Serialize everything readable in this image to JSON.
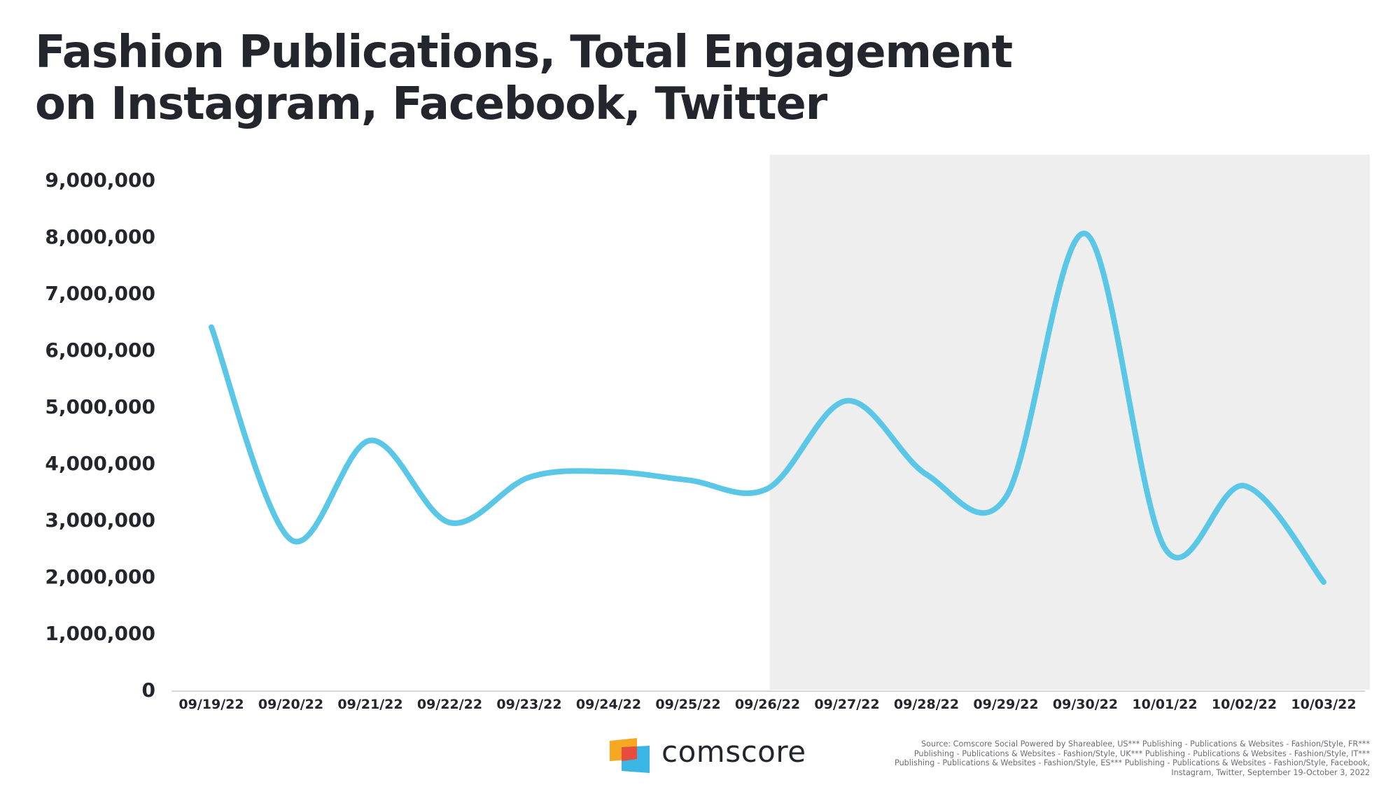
{
  "title": {
    "line1": "Fashion Publications, Total Engagement",
    "line2": "on Instagram, Facebook, Twitter"
  },
  "chart_data": {
    "type": "line",
    "title": "Fashion Publications, Total Engagement on Instagram, Facebook, Twitter",
    "xlabel": "",
    "ylabel": "",
    "categories": [
      "09/19/22",
      "09/20/22",
      "09/21/22",
      "09/22/22",
      "09/23/22",
      "09/24/22",
      "09/25/22",
      "09/26/22",
      "09/27/22",
      "09/28/22",
      "09/29/22",
      "09/30/22",
      "10/01/22",
      "10/02/22",
      "10/03/22"
    ],
    "series": [
      {
        "values": [
          6400000,
          2650000,
          4400000,
          2950000,
          3750000,
          3850000,
          3700000,
          3550000,
          5100000,
          3800000,
          3400000,
          8050000,
          2500000,
          3600000,
          1900000
        ],
        "color": "#5bc7e6"
      }
    ],
    "ylim": [
      0,
      9000000
    ],
    "yticks": [
      0,
      1000000,
      2000000,
      3000000,
      4000000,
      5000000,
      6000000,
      7000000,
      8000000,
      9000000
    ],
    "ytick_labels": [
      "0",
      "1,000,000",
      "2,000,000",
      "3,000,000",
      "4,000,000",
      "5,000,000",
      "6,000,000",
      "7,000,000",
      "8,000,000",
      "9,000,000"
    ],
    "highlight_range": [
      "09/26/22",
      "10/03/22"
    ],
    "highlight_color": "#eeeeee",
    "grid": false,
    "legend": "none"
  },
  "footer": {
    "logo_text": "comscore",
    "logo_colors": [
      "#f7a823",
      "#e84c3d",
      "#39b6e3"
    ],
    "source_lines": [
      "Source: Comscore Social Powered by Shareablee, US*** Publishing - Publications & Websites - Fashion/Style, FR***",
      "Publishing - Publications & Websites - Fashion/Style, UK*** Publishing - Publications & Websites - Fashion/Style, IT***",
      "Publishing - Publications & Websites - Fashion/Style, ES*** Publishing - Publications & Websites - Fashion/Style, Facebook,",
      "Instagram, Twitter, September 19-October 3, 2022"
    ]
  }
}
